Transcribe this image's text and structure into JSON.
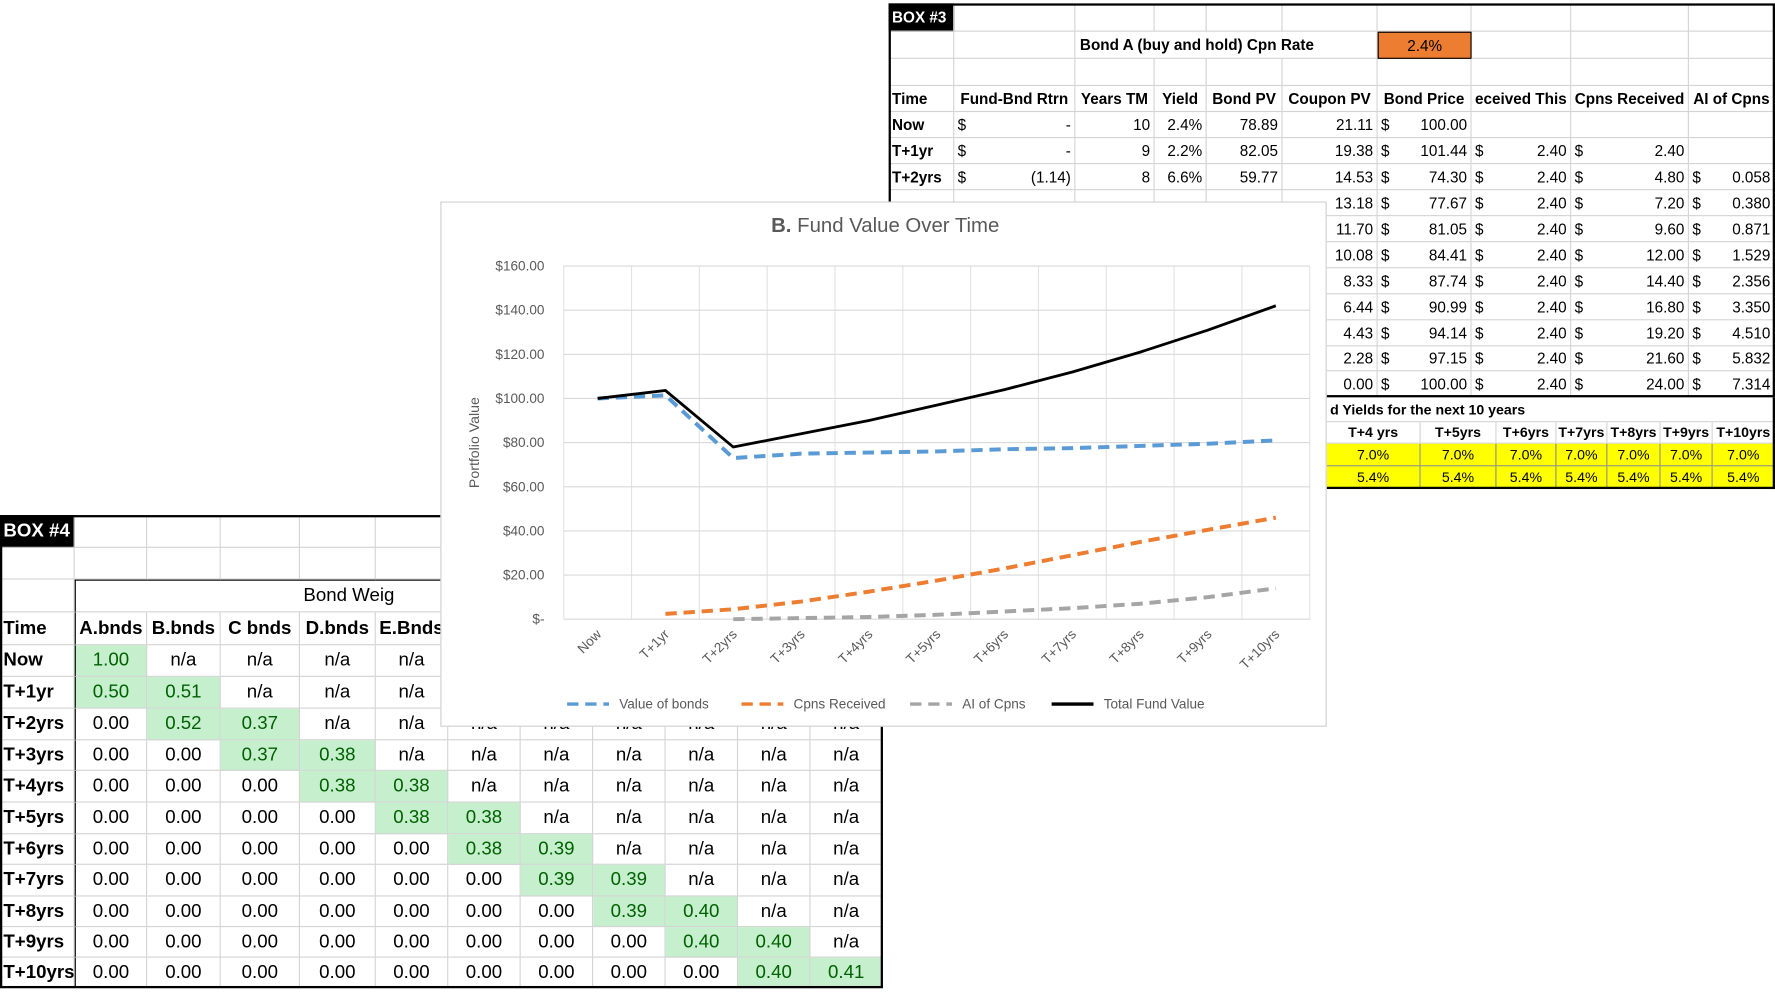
{
  "box3": {
    "title": "BOX #3",
    "rate_label": "Bond A (buy and hold) Cpn Rate",
    "rate": "2.4%",
    "rate_color": "#ed7d31",
    "header": [
      "Time",
      "Fund-Bnd Rtrn",
      "Years TM",
      "Yield",
      "Bond PV",
      "Coupon PV",
      "Bond Price",
      "eceived This",
      "Cpns Received",
      "AI of Cpns"
    ],
    "rows": [
      [
        "Now",
        [
          "$",
          "-"
        ],
        "10",
        "2.4%",
        "78.89",
        "21.11",
        [
          "$",
          "100.00"
        ],
        null,
        null,
        null
      ],
      [
        "T+1yr",
        [
          "$",
          "-"
        ],
        "9",
        "2.2%",
        "82.05",
        "19.38",
        [
          "$",
          "101.44"
        ],
        [
          "$",
          "2.40"
        ],
        [
          "$",
          "2.40"
        ],
        null
      ],
      [
        "T+2yrs",
        [
          "$",
          "(1.14)"
        ],
        "8",
        "6.6%",
        "59.77",
        "14.53",
        [
          "$",
          "74.30"
        ],
        [
          "$",
          "2.40"
        ],
        [
          "$",
          "4.80"
        ],
        [
          "$",
          "0.058"
        ]
      ],
      [
        null,
        null,
        null,
        null,
        null,
        "13.18",
        [
          "$",
          "77.67"
        ],
        [
          "$",
          "2.40"
        ],
        [
          "$",
          "7.20"
        ],
        [
          "$",
          "0.380"
        ]
      ],
      [
        null,
        null,
        null,
        null,
        null,
        "11.70",
        [
          "$",
          "81.05"
        ],
        [
          "$",
          "2.40"
        ],
        [
          "$",
          "9.60"
        ],
        [
          "$",
          "0.871"
        ]
      ],
      [
        null,
        null,
        null,
        null,
        null,
        "10.08",
        [
          "$",
          "84.41"
        ],
        [
          "$",
          "2.40"
        ],
        [
          "$",
          "12.00"
        ],
        [
          "$",
          "1.529"
        ]
      ],
      [
        null,
        null,
        null,
        null,
        null,
        "8.33",
        [
          "$",
          "87.74"
        ],
        [
          "$",
          "2.40"
        ],
        [
          "$",
          "14.40"
        ],
        [
          "$",
          "2.356"
        ]
      ],
      [
        null,
        null,
        null,
        null,
        null,
        "6.44",
        [
          "$",
          "90.99"
        ],
        [
          "$",
          "2.40"
        ],
        [
          "$",
          "16.80"
        ],
        [
          "$",
          "3.350"
        ]
      ],
      [
        null,
        null,
        null,
        null,
        null,
        "4.43",
        [
          "$",
          "94.14"
        ],
        [
          "$",
          "2.40"
        ],
        [
          "$",
          "19.20"
        ],
        [
          "$",
          "4.510"
        ]
      ],
      [
        null,
        null,
        null,
        null,
        null,
        "2.28",
        [
          "$",
          "97.15"
        ],
        [
          "$",
          "2.40"
        ],
        [
          "$",
          "21.60"
        ],
        [
          "$",
          "5.832"
        ]
      ],
      [
        null,
        null,
        null,
        null,
        null,
        "0.00",
        [
          "$",
          "100.00"
        ],
        [
          "$",
          "2.40"
        ],
        [
          "$",
          "24.00"
        ],
        [
          "$",
          "7.314"
        ]
      ]
    ],
    "yields_title": "d Yields for the next 10 years",
    "yields_header": [
      "T+4 yrs",
      "T+5yrs",
      "T+6yrs",
      "T+7yrs",
      "T+8yrs",
      "T+9yrs",
      "T+10yrs"
    ],
    "yields_rows": [
      [
        "7.0%",
        "7.0%",
        "7.0%",
        "7.0%",
        "7.0%",
        "7.0%",
        "7.0%"
      ],
      [
        "5.4%",
        "5.4%",
        "5.4%",
        "5.4%",
        "5.4%",
        "5.4%",
        "5.4%"
      ]
    ],
    "yields_color": "#ffff00"
  },
  "box4": {
    "title": "BOX #4",
    "group_label": "Bond Weig",
    "highlight": "#c6efce",
    "highlight_text": "#006100",
    "header": [
      "Time",
      "A.bnds",
      "B.bnds",
      "C bnds",
      "D.bnds",
      "E.Bnds"
    ],
    "rows": [
      [
        "Now",
        "1.00",
        "n/a",
        "n/a",
        "n/a",
        "n/a"
      ],
      [
        "T+1yr",
        "0.50",
        "0.51",
        "n/a",
        "n/a",
        "n/a"
      ],
      [
        "T+2yrs",
        "0.00",
        "0.52",
        "0.37",
        "n/a",
        "n/a",
        "n/a",
        "n/a",
        "n/a",
        "n/a",
        "n/a",
        "n/a"
      ],
      [
        "T+3yrs",
        "0.00",
        "0.00",
        "0.37",
        "0.38",
        "n/a",
        "n/a",
        "n/a",
        "n/a",
        "n/a",
        "n/a",
        "n/a"
      ],
      [
        "T+4yrs",
        "0.00",
        "0.00",
        "0.00",
        "0.38",
        "0.38",
        "n/a",
        "n/a",
        "n/a",
        "n/a",
        "n/a",
        "n/a"
      ],
      [
        "T+5yrs",
        "0.00",
        "0.00",
        "0.00",
        "0.00",
        "0.38",
        "0.38",
        "n/a",
        "n/a",
        "n/a",
        "n/a",
        "n/a"
      ],
      [
        "T+6yrs",
        "0.00",
        "0.00",
        "0.00",
        "0.00",
        "0.00",
        "0.38",
        "0.39",
        "n/a",
        "n/a",
        "n/a",
        "n/a"
      ],
      [
        "T+7yrs",
        "0.00",
        "0.00",
        "0.00",
        "0.00",
        "0.00",
        "0.00",
        "0.39",
        "0.39",
        "n/a",
        "n/a",
        "n/a"
      ],
      [
        "T+8yrs",
        "0.00",
        "0.00",
        "0.00",
        "0.00",
        "0.00",
        "0.00",
        "0.00",
        "0.39",
        "0.40",
        "n/a",
        "n/a"
      ],
      [
        "T+9yrs",
        "0.00",
        "0.00",
        "0.00",
        "0.00",
        "0.00",
        "0.00",
        "0.00",
        "0.00",
        "0.40",
        "0.40",
        "n/a"
      ],
      [
        "T+10yrs",
        "0.00",
        "0.00",
        "0.00",
        "0.00",
        "0.00",
        "0.00",
        "0.00",
        "0.00",
        "0.00",
        "0.40",
        "0.41"
      ]
    ]
  },
  "chart_data": {
    "type": "line",
    "title_prefix": "B.",
    "title": "Fund Value Over Time",
    "y_label": "Portfolio Value",
    "categories": [
      "Now",
      "T+1yr",
      "T+2yrs",
      "T+3yrs",
      "T+4yrs",
      "T+5yrs",
      "T+6yrs",
      "T+7yrs",
      "T+8yrs",
      "T+9yrs",
      "T+10yrs"
    ],
    "ylim": [
      0,
      160
    ],
    "yticks": [
      {
        "value": 0,
        "label": "$-"
      },
      {
        "value": 20,
        "label": "$20.00"
      },
      {
        "value": 40,
        "label": "$40.00"
      },
      {
        "value": 60,
        "label": "$60.00"
      },
      {
        "value": 80,
        "label": "$80.00"
      },
      {
        "value": 100,
        "label": "$100.00"
      },
      {
        "value": 120,
        "label": "$120.00"
      },
      {
        "value": 140,
        "label": "$140.00"
      },
      {
        "value": 160,
        "label": "$160.00"
      }
    ],
    "grid": true,
    "legend": "bottom",
    "series": [
      {
        "name": "Value of bonds",
        "color": "#5b9bd5",
        "dashed": true,
        "values": [
          100,
          101.4,
          73,
          75,
          75.5,
          76,
          77,
          77.5,
          78.5,
          79.5,
          81
        ]
      },
      {
        "name": "Cpns Received",
        "color": "#ed7d31",
        "dashed": true,
        "values": [
          null,
          2.4,
          4.5,
          8,
          12.5,
          17.5,
          23,
          29,
          35,
          40.5,
          46
        ]
      },
      {
        "name": "AI of Cpns",
        "color": "#a5a5a5",
        "dashed": true,
        "values": [
          null,
          null,
          0,
          0.5,
          1,
          2,
          3.5,
          5,
          7,
          10,
          14
        ]
      },
      {
        "name": "Total Fund Value",
        "color": "#000000",
        "dashed": false,
        "values": [
          100,
          103.6,
          78,
          84,
          90,
          97,
          104,
          112,
          121,
          131,
          142
        ]
      }
    ]
  }
}
